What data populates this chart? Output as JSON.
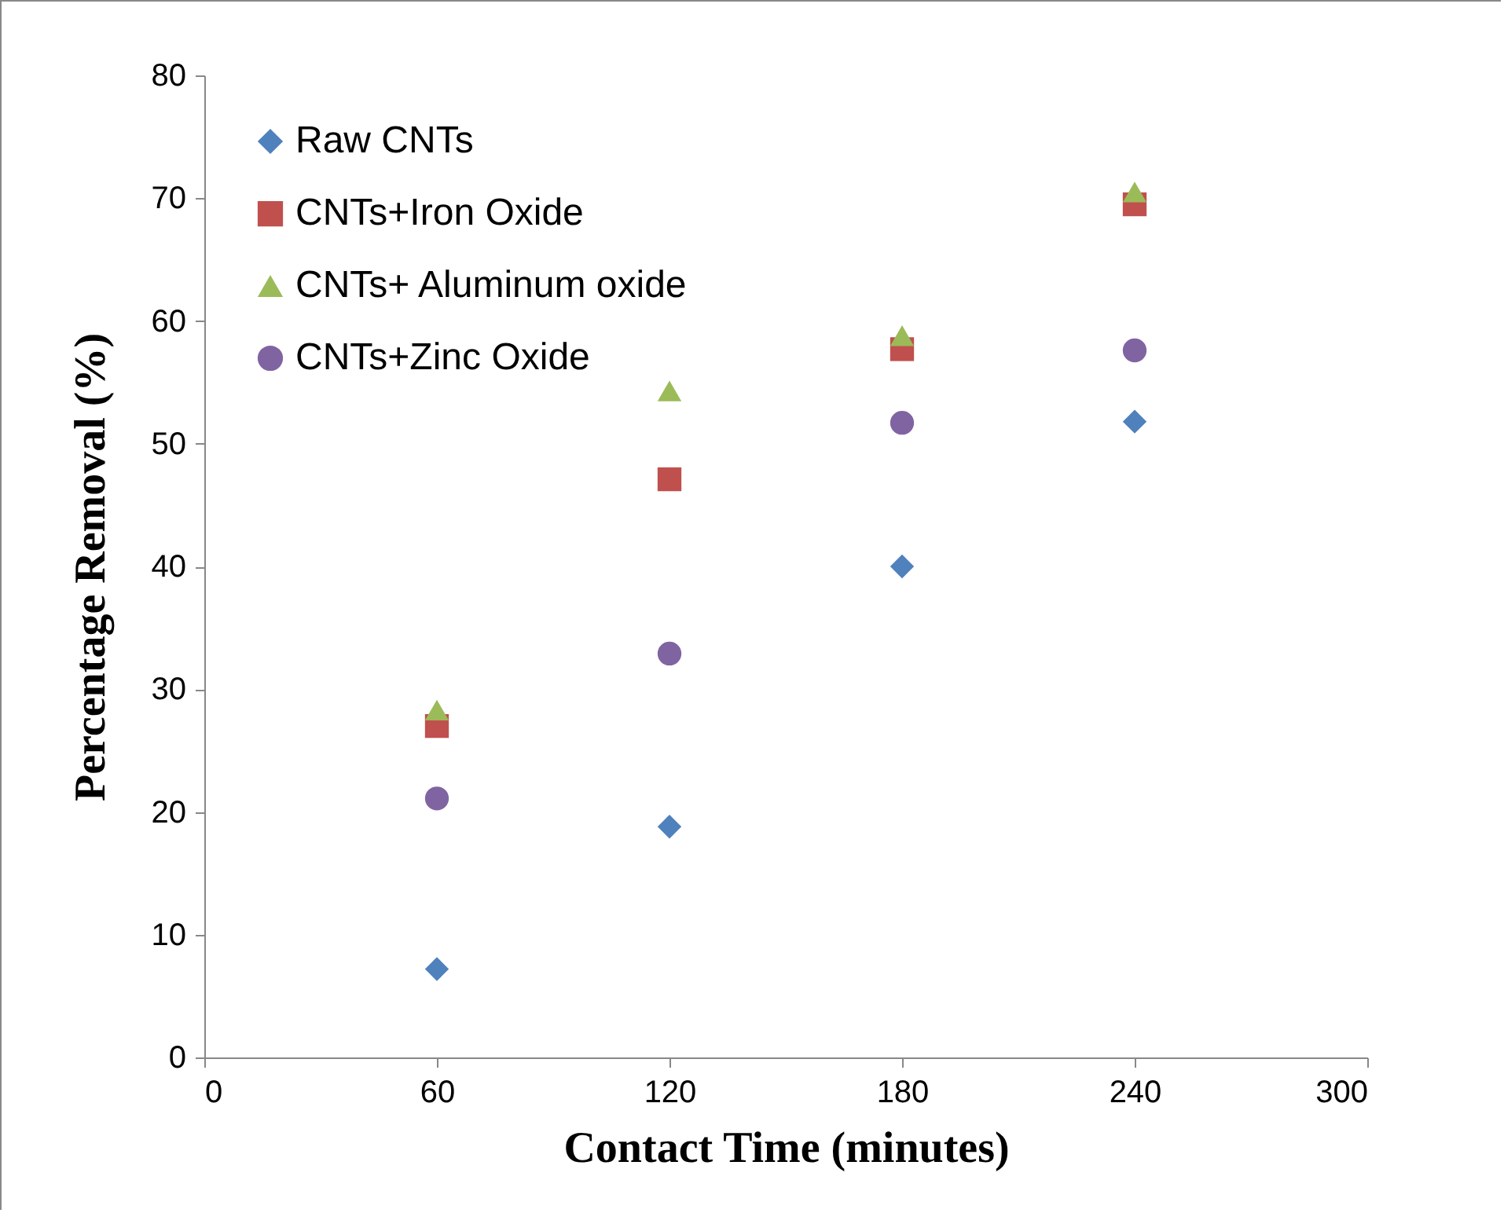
{
  "chart_data": {
    "type": "scatter",
    "xlabel": "Contact Time (minutes)",
    "ylabel": "Percentage Removal (%)",
    "x": [
      60,
      120,
      180,
      240
    ],
    "series": [
      {
        "name": "Raw CNTs",
        "color": "#4f81bd",
        "marker": "diamond",
        "values": [
          7.2,
          18.8,
          40,
          51.8
        ]
      },
      {
        "name": "CNTs+Iron Oxide",
        "color": "#c0504d",
        "marker": "square",
        "values": [
          27.0,
          47.1,
          57.7,
          69.5
        ]
      },
      {
        "name": "CNTs+ Aluminum oxide",
        "color": "#9bbb59",
        "marker": "triangle",
        "values": [
          28.3,
          54.3,
          58.8,
          70.5
        ]
      },
      {
        "name": "CNTs+Zinc Oxide",
        "color": "#8064a2",
        "marker": "circle",
        "values": [
          21.1,
          32.9,
          51.7,
          57.6
        ]
      }
    ],
    "xlim": [
      0,
      300
    ],
    "xticks": [
      0,
      60,
      120,
      180,
      240,
      300
    ],
    "ylim": [
      0,
      80
    ],
    "yticks": [
      0,
      10,
      20,
      30,
      40,
      50,
      60,
      70,
      80
    ],
    "grid": false,
    "legend": "top left"
  }
}
